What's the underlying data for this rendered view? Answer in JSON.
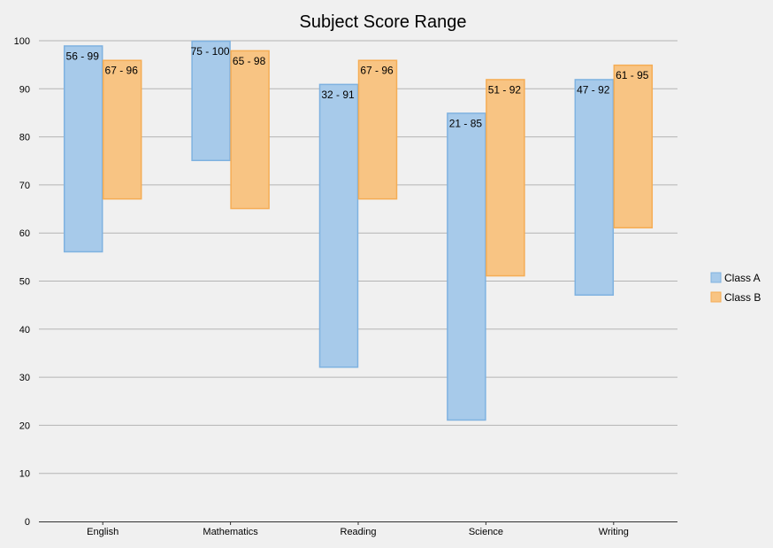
{
  "chart_data": {
    "type": "bar",
    "subtype": "range",
    "title": "Subject Score Range",
    "xlabel": "",
    "ylabel": "",
    "ylim": [
      0,
      100
    ],
    "ytick_step": 10,
    "grid": true,
    "legend_position": "right",
    "categories": [
      "English",
      "Mathematics",
      "Reading",
      "Science",
      "Writing"
    ],
    "series": [
      {
        "name": "Class A",
        "fill": "#a7caea",
        "stroke": "#7fb2e0",
        "ranges": [
          [
            56,
            99
          ],
          [
            75,
            100
          ],
          [
            32,
            91
          ],
          [
            21,
            85
          ],
          [
            47,
            92
          ]
        ],
        "labels": [
          "56 - 99",
          "75 - 100",
          "32 - 91",
          "21 - 85",
          "47 - 92"
        ]
      },
      {
        "name": "Class B",
        "fill": "#f8c483",
        "stroke": "#f5ad55",
        "ranges": [
          [
            67,
            96
          ],
          [
            65,
            98
          ],
          [
            67,
            96
          ],
          [
            51,
            92
          ],
          [
            61,
            95
          ]
        ],
        "labels": [
          "67 - 96",
          "65 - 98",
          "67 - 96",
          "51 - 92",
          "61 - 95"
        ]
      }
    ]
  }
}
